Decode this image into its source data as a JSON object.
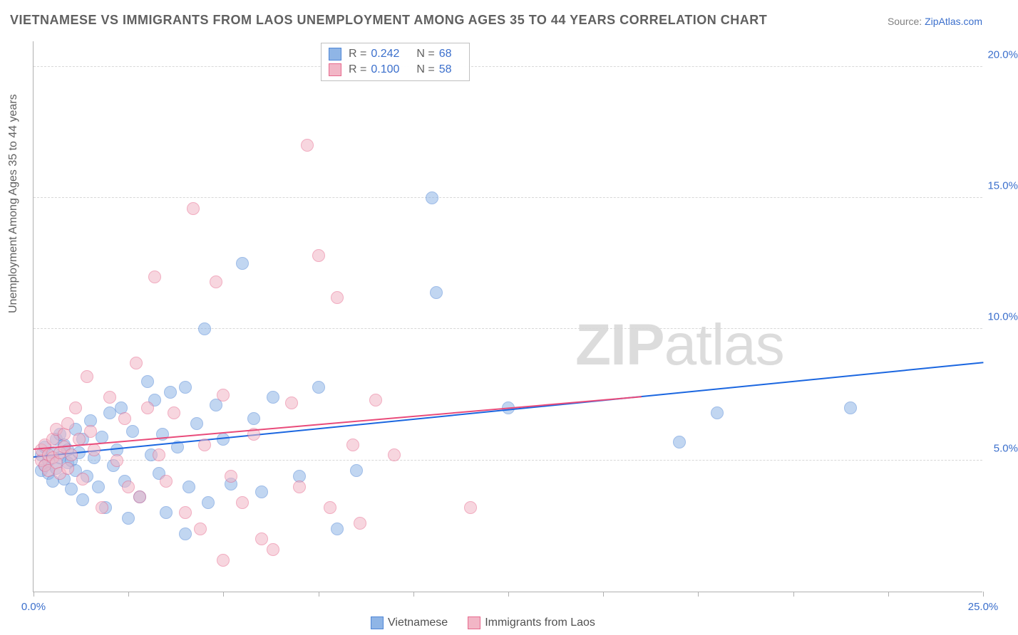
{
  "title": "VIETNAMESE VS IMMIGRANTS FROM LAOS UNEMPLOYMENT AMONG AGES 35 TO 44 YEARS CORRELATION CHART",
  "source_prefix": "Source: ",
  "source_link": "ZipAtlas.com",
  "ylabel": "Unemployment Among Ages 35 to 44 years",
  "watermark": "ZIPatlas",
  "chart": {
    "type": "scatter",
    "xlim": [
      0,
      25
    ],
    "ylim": [
      0,
      21
    ],
    "x_ticks": [
      0,
      2.5,
      5,
      7.5,
      10,
      12.5,
      15,
      17.5,
      20,
      22.5,
      25
    ],
    "x_tick_labels": {
      "0": "0.0%",
      "25": "25.0%"
    },
    "y_gridlines": [
      5,
      10,
      15,
      20
    ],
    "y_tick_labels": {
      "5": "5.0%",
      "10": "10.0%",
      "15": "15.0%",
      "20": "20.0%"
    },
    "background_color": "#ffffff",
    "grid_color": "#d8d8d8",
    "axis_color": "#b0b0b0",
    "marker_radius": 9,
    "marker_opacity": 0.55,
    "series": [
      {
        "name": "Vietnamese",
        "fill": "#8fb5e6",
        "stroke": "#4f86d6",
        "line_color": "#1a66e0",
        "r": 0.242,
        "n": 68,
        "trend": {
          "x1": 0,
          "y1": 5.1,
          "x2": 25,
          "y2": 8.7
        },
        "points": [
          [
            0.2,
            4.6
          ],
          [
            0.2,
            5.2
          ],
          [
            0.3,
            4.8
          ],
          [
            0.3,
            5.5
          ],
          [
            0.4,
            4.5
          ],
          [
            0.4,
            5.0
          ],
          [
            0.5,
            5.3
          ],
          [
            0.5,
            4.2
          ],
          [
            0.6,
            5.8
          ],
          [
            0.6,
            4.7
          ],
          [
            0.7,
            5.1
          ],
          [
            0.7,
            6.0
          ],
          [
            0.8,
            4.3
          ],
          [
            0.8,
            5.6
          ],
          [
            0.9,
            4.9
          ],
          [
            0.9,
            5.4
          ],
          [
            1.0,
            3.9
          ],
          [
            1.0,
            5.0
          ],
          [
            1.1,
            6.2
          ],
          [
            1.1,
            4.6
          ],
          [
            1.2,
            5.3
          ],
          [
            1.3,
            3.5
          ],
          [
            1.3,
            5.8
          ],
          [
            1.4,
            4.4
          ],
          [
            1.5,
            6.5
          ],
          [
            1.6,
            5.1
          ],
          [
            1.7,
            4.0
          ],
          [
            1.8,
            5.9
          ],
          [
            1.9,
            3.2
          ],
          [
            2.0,
            6.8
          ],
          [
            2.1,
            4.8
          ],
          [
            2.2,
            5.4
          ],
          [
            2.3,
            7.0
          ],
          [
            2.4,
            4.2
          ],
          [
            2.5,
            2.8
          ],
          [
            2.6,
            6.1
          ],
          [
            2.8,
            3.6
          ],
          [
            3.0,
            8.0
          ],
          [
            3.1,
            5.2
          ],
          [
            3.2,
            7.3
          ],
          [
            3.3,
            4.5
          ],
          [
            3.4,
            6.0
          ],
          [
            3.5,
            3.0
          ],
          [
            3.6,
            7.6
          ],
          [
            3.8,
            5.5
          ],
          [
            4.0,
            7.8
          ],
          [
            4.1,
            4.0
          ],
          [
            4.3,
            6.4
          ],
          [
            4.5,
            10.0
          ],
          [
            4.6,
            3.4
          ],
          [
            4.8,
            7.1
          ],
          [
            5.0,
            5.8
          ],
          [
            5.2,
            4.1
          ],
          [
            5.5,
            12.5
          ],
          [
            5.8,
            6.6
          ],
          [
            6.0,
            3.8
          ],
          [
            6.3,
            7.4
          ],
          [
            7.0,
            4.4
          ],
          [
            7.5,
            7.8
          ],
          [
            8.0,
            2.4
          ],
          [
            8.5,
            4.6
          ],
          [
            10.5,
            15.0
          ],
          [
            10.6,
            11.4
          ],
          [
            12.5,
            7.0
          ],
          [
            17.0,
            5.7
          ],
          [
            18.0,
            6.8
          ],
          [
            21.5,
            7.0
          ],
          [
            4.0,
            2.2
          ]
        ]
      },
      {
        "name": "Immigrants from Laos",
        "fill": "#f2b6c6",
        "stroke": "#e76a8e",
        "line_color": "#e94b7a",
        "r": 0.1,
        "n": 58,
        "trend": {
          "x1": 0,
          "y1": 5.4,
          "x2": 16,
          "y2": 7.4
        },
        "points": [
          [
            0.2,
            5.0
          ],
          [
            0.2,
            5.4
          ],
          [
            0.3,
            4.8
          ],
          [
            0.3,
            5.6
          ],
          [
            0.4,
            5.2
          ],
          [
            0.4,
            4.6
          ],
          [
            0.5,
            5.8
          ],
          [
            0.5,
            5.1
          ],
          [
            0.6,
            4.9
          ],
          [
            0.6,
            6.2
          ],
          [
            0.7,
            5.3
          ],
          [
            0.7,
            4.5
          ],
          [
            0.8,
            6.0
          ],
          [
            0.8,
            5.5
          ],
          [
            0.9,
            4.7
          ],
          [
            0.9,
            6.4
          ],
          [
            1.0,
            5.2
          ],
          [
            1.1,
            7.0
          ],
          [
            1.2,
            5.8
          ],
          [
            1.3,
            4.3
          ],
          [
            1.4,
            8.2
          ],
          [
            1.5,
            6.1
          ],
          [
            1.6,
            5.4
          ],
          [
            1.8,
            3.2
          ],
          [
            2.0,
            7.4
          ],
          [
            2.2,
            5.0
          ],
          [
            2.4,
            6.6
          ],
          [
            2.5,
            4.0
          ],
          [
            2.7,
            8.7
          ],
          [
            2.8,
            3.6
          ],
          [
            3.0,
            7.0
          ],
          [
            3.2,
            12.0
          ],
          [
            3.3,
            5.2
          ],
          [
            3.5,
            4.2
          ],
          [
            3.7,
            6.8
          ],
          [
            4.0,
            3.0
          ],
          [
            4.2,
            14.6
          ],
          [
            4.5,
            5.6
          ],
          [
            4.8,
            11.8
          ],
          [
            5.0,
            7.5
          ],
          [
            5.2,
            4.4
          ],
          [
            5.5,
            3.4
          ],
          [
            5.8,
            6.0
          ],
          [
            6.0,
            2.0
          ],
          [
            6.3,
            1.6
          ],
          [
            6.8,
            7.2
          ],
          [
            7.0,
            4.0
          ],
          [
            7.2,
            17.0
          ],
          [
            7.5,
            12.8
          ],
          [
            8.0,
            11.2
          ],
          [
            8.4,
            5.6
          ],
          [
            8.6,
            2.6
          ],
          [
            9.0,
            7.3
          ],
          [
            9.5,
            5.2
          ],
          [
            11.5,
            3.2
          ],
          [
            7.8,
            3.2
          ],
          [
            5.0,
            1.2
          ],
          [
            4.4,
            2.4
          ]
        ]
      }
    ]
  },
  "legend_bottom": [
    {
      "label": "Vietnamese",
      "fill": "#8fb5e6",
      "stroke": "#4f86d6"
    },
    {
      "label": "Immigrants from Laos",
      "fill": "#f2b6c6",
      "stroke": "#e76a8e"
    }
  ]
}
